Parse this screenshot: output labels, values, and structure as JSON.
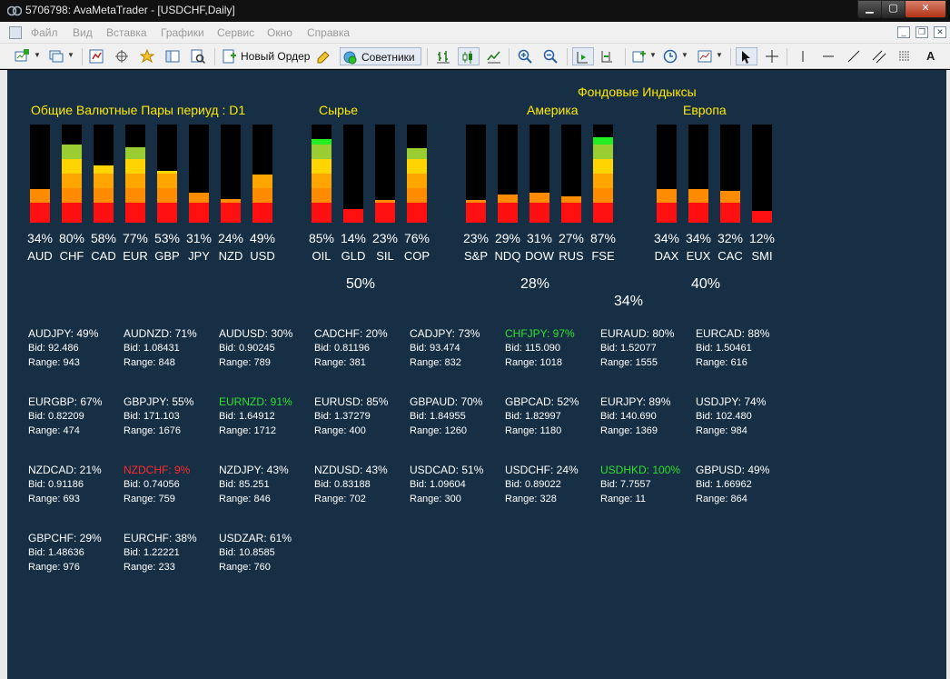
{
  "window": {
    "title": "5706798: AvaMetaTrader - [USDCHF,Daily]"
  },
  "menu": [
    "Файл",
    "Вид",
    "Вставка",
    "Графики",
    "Сервис",
    "Окно",
    "Справка"
  ],
  "toolbar": {
    "new_order": "Новый Ордер",
    "advisors": "Советники"
  },
  "chart": {
    "currencies_title": "Общие Валютные Пары  периуд : D1",
    "commodities_title": "Сырье",
    "indices_title": "Фондовые Индыксы",
    "america_title": "Америка",
    "europe_title": "Европа",
    "commodities_avg": "50%",
    "america_avg": "28%",
    "indices_avg": "34%",
    "europe_avg": "40%"
  },
  "meters": [
    {
      "name": "AUD",
      "pct": "34%",
      "value": 34
    },
    {
      "name": "CHF",
      "pct": "80%",
      "value": 80
    },
    {
      "name": "CAD",
      "pct": "58%",
      "value": 58
    },
    {
      "name": "EUR",
      "pct": "77%",
      "value": 77
    },
    {
      "name": "GBP",
      "pct": "53%",
      "value": 53
    },
    {
      "name": "JPY",
      "pct": "31%",
      "value": 31
    },
    {
      "name": "NZD",
      "pct": "24%",
      "value": 24
    },
    {
      "name": "USD",
      "pct": "49%",
      "value": 49
    },
    {
      "name": "OIL",
      "pct": "85%",
      "value": 85
    },
    {
      "name": "GLD",
      "pct": "14%",
      "value": 14
    },
    {
      "name": "SIL",
      "pct": "23%",
      "value": 23
    },
    {
      "name": "COP",
      "pct": "76%",
      "value": 76
    },
    {
      "name": "S&P",
      "pct": "23%",
      "value": 23
    },
    {
      "name": "NDQ",
      "pct": "29%",
      "value": 29
    },
    {
      "name": "DOW",
      "pct": "31%",
      "value": 31
    },
    {
      "name": "RUS",
      "pct": "27%",
      "value": 27
    },
    {
      "name": "FSE",
      "pct": "87%",
      "value": 87
    },
    {
      "name": "DAX",
      "pct": "34%",
      "value": 34
    },
    {
      "name": "EUX",
      "pct": "34%",
      "value": 34
    },
    {
      "name": "CAC",
      "pct": "32%",
      "value": 32
    },
    {
      "name": "SMI",
      "pct": "12%",
      "value": 12
    }
  ],
  "pairs": [
    {
      "title": "AUDJPY: 49%",
      "bid": "Bid: 92.486",
      "range": "Range: 943",
      "color": "#ffffff"
    },
    {
      "title": "AUDNZD: 71%",
      "bid": "Bid: 1.08431",
      "range": "Range: 848",
      "color": "#ffffff"
    },
    {
      "title": "AUDUSD: 30%",
      "bid": "Bid: 0.90245",
      "range": "Range: 789",
      "color": "#ffffff"
    },
    {
      "title": "CADCHF: 20%",
      "bid": "Bid: 0.81196",
      "range": "Range: 381",
      "color": "#ffffff"
    },
    {
      "title": "CADJPY: 73%",
      "bid": "Bid: 93.474",
      "range": "Range: 832",
      "color": "#ffffff"
    },
    {
      "title": "CHFJPY: 97%",
      "bid": "Bid: 115.090",
      "range": "Range: 1018",
      "color": "#2ee02e"
    },
    {
      "title": "EURAUD: 80%",
      "bid": "Bid: 1.52077",
      "range": "Range: 1555",
      "color": "#ffffff"
    },
    {
      "title": "EURCAD: 88%",
      "bid": "Bid: 1.50461",
      "range": "Range: 616",
      "color": "#ffffff"
    },
    {
      "title": "EURGBP: 67%",
      "bid": "Bid: 0.82209",
      "range": "Range: 474",
      "color": "#ffffff"
    },
    {
      "title": "GBPJPY: 55%",
      "bid": "Bid: 171.103",
      "range": "Range: 1676",
      "color": "#ffffff"
    },
    {
      "title": "EURNZD: 91%",
      "bid": "Bid: 1.64912",
      "range": "Range: 1712",
      "color": "#2ee02e"
    },
    {
      "title": "EURUSD: 85%",
      "bid": "Bid: 1.37279",
      "range": "Range: 400",
      "color": "#ffffff"
    },
    {
      "title": "GBPAUD: 70%",
      "bid": "Bid: 1.84955",
      "range": "Range: 1260",
      "color": "#ffffff"
    },
    {
      "title": "GBPCAD: 52%",
      "bid": "Bid: 1.82997",
      "range": "Range: 1180",
      "color": "#ffffff"
    },
    {
      "title": "EURJPY: 89%",
      "bid": "Bid: 140.690",
      "range": "Range: 1369",
      "color": "#ffffff"
    },
    {
      "title": "USDJPY: 74%",
      "bid": "Bid: 102.480",
      "range": "Range: 984",
      "color": "#ffffff"
    },
    {
      "title": "NZDCAD: 21%",
      "bid": "Bid: 0.91186",
      "range": "Range: 693",
      "color": "#ffffff"
    },
    {
      "title": "NZDCHF: 9%",
      "bid": "Bid: 0.74056",
      "range": "Range: 759",
      "color": "#ff2a2a"
    },
    {
      "title": "NZDJPY: 43%",
      "bid": "Bid: 85.251",
      "range": "Range: 846",
      "color": "#ffffff"
    },
    {
      "title": "NZDUSD: 43%",
      "bid": "Bid: 0.83188",
      "range": "Range: 702",
      "color": "#ffffff"
    },
    {
      "title": "USDCAD: 51%",
      "bid": "Bid: 1.09604",
      "range": "Range: 300",
      "color": "#ffffff"
    },
    {
      "title": "USDCHF: 24%",
      "bid": "Bid: 0.89022",
      "range": "Range: 328",
      "color": "#ffffff"
    },
    {
      "title": "USDHKD: 100%",
      "bid": "Bid: 7.7557",
      "range": "Range: 11",
      "color": "#2ee02e"
    },
    {
      "title": "GBPUSD: 49%",
      "bid": "Bid: 1.66962",
      "range": "Range: 864",
      "color": "#ffffff"
    },
    {
      "title": "GBPCHF: 29%",
      "bid": "Bid: 1.48636",
      "range": "Range: 976",
      "color": "#ffffff"
    },
    {
      "title": "EURCHF: 38%",
      "bid": "Bid: 1.22221",
      "range": "Range: 233",
      "color": "#ffffff"
    },
    {
      "title": "USDZAR: 61%",
      "bid": "Bid: 10.8585",
      "range": "Range: 760",
      "color": "#ffffff"
    }
  ],
  "colors": {
    "chart_bg": "#172f45",
    "label_yellow": "#ffe800",
    "meter_red": "#ff1010",
    "meter_orange": "#ff8c00",
    "meter_light_orange": "#ffa500",
    "meter_yellow": "#ffd400",
    "meter_yellowgreen": "#9acd32",
    "meter_green": "#22ee22",
    "pair_up": "#2ee02e",
    "pair_down": "#ff2a2a"
  }
}
